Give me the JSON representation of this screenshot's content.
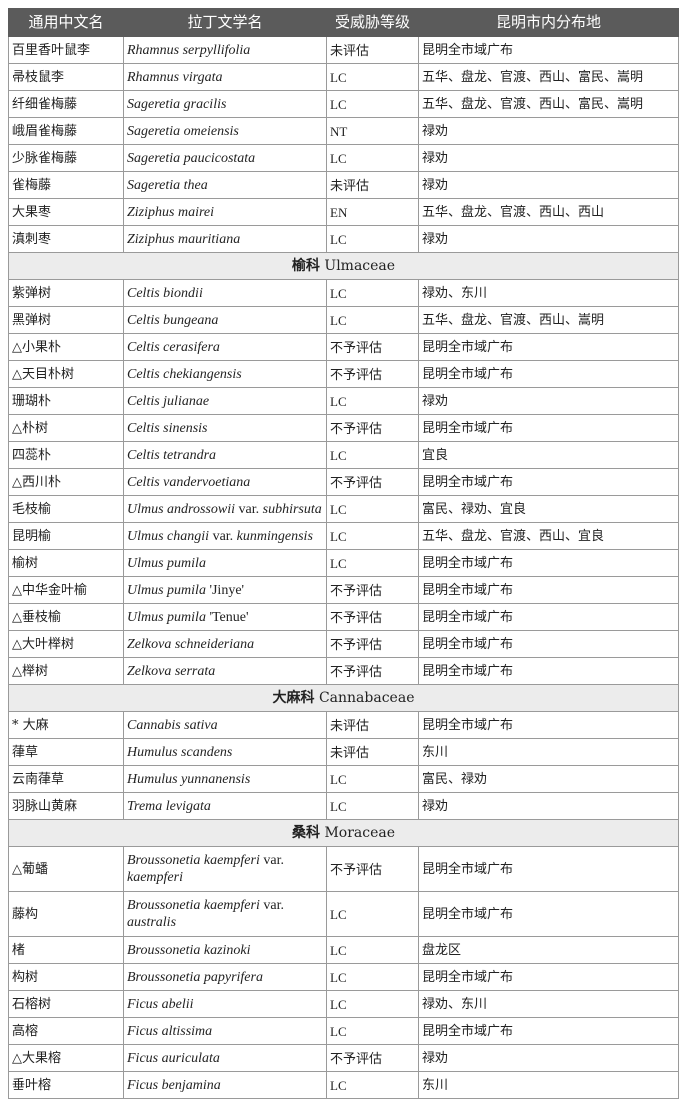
{
  "header": [
    "通用中文名",
    "拉丁文学名",
    "受威胁等级",
    "昆明市内分布地"
  ],
  "rows": [
    {
      "cn": "百里香叶鼠李",
      "lat": [
        [
          "Rhamnus serpyllifolia",
          1
        ]
      ],
      "status": "未评估",
      "dist": "昆明全市域广布"
    },
    {
      "cn": "帚枝鼠李",
      "lat": [
        [
          "Rhamnus virgata",
          1
        ]
      ],
      "status": "LC",
      "dist": "五华、盘龙、官渡、西山、富民、嵩明"
    },
    {
      "cn": "纤细雀梅藤",
      "lat": [
        [
          "Sageretia gracilis",
          1
        ]
      ],
      "status": "LC",
      "dist": "五华、盘龙、官渡、西山、富民、嵩明"
    },
    {
      "cn": "峨眉雀梅藤",
      "lat": [
        [
          "Sageretia omeiensis",
          1
        ]
      ],
      "status": "NT",
      "dist": "禄劝"
    },
    {
      "cn": "少脉雀梅藤",
      "lat": [
        [
          "Sageretia paucicostata",
          1
        ]
      ],
      "status": "LC",
      "dist": "禄劝"
    },
    {
      "cn": "雀梅藤",
      "lat": [
        [
          "Sageretia thea",
          1
        ]
      ],
      "status": "未评估",
      "dist": "禄劝"
    },
    {
      "cn": "大果枣",
      "lat": [
        [
          "Ziziphus mairei",
          1
        ]
      ],
      "status": "EN",
      "dist": "五华、盘龙、官渡、西山、西山"
    },
    {
      "cn": "滇刺枣",
      "lat": [
        [
          "Ziziphus mauritiana",
          1
        ]
      ],
      "status": "LC",
      "dist": "禄劝"
    },
    {
      "family_cn": "榆科",
      "family_lat": "Ulmaceae"
    },
    {
      "cn": "紫弹树",
      "lat": [
        [
          "Celtis biondii",
          1
        ]
      ],
      "status": "LC",
      "dist": "禄劝、东川"
    },
    {
      "cn": "黑弹树",
      "lat": [
        [
          "Celtis bungeana",
          1
        ]
      ],
      "status": "LC",
      "dist": "五华、盘龙、官渡、西山、嵩明"
    },
    {
      "cn": "△小果朴",
      "lat": [
        [
          "Celtis cerasifera",
          1
        ]
      ],
      "status": "不予评估",
      "dist": "昆明全市域广布"
    },
    {
      "cn": "△天目朴树",
      "lat": [
        [
          "Celtis chekiangensis",
          1
        ]
      ],
      "status": "不予评估",
      "dist": "昆明全市域广布"
    },
    {
      "cn": "珊瑚朴",
      "lat": [
        [
          "Celtis julianae",
          1
        ]
      ],
      "status": "LC",
      "dist": "禄劝"
    },
    {
      "cn": "△朴树",
      "lat": [
        [
          "Celtis sinensis",
          1
        ]
      ],
      "status": "不予评估",
      "dist": "昆明全市域广布"
    },
    {
      "cn": "四蕊朴",
      "lat": [
        [
          "Celtis tetrandra",
          1
        ]
      ],
      "status": "LC",
      "dist": "宜良"
    },
    {
      "cn": "△西川朴",
      "lat": [
        [
          "Celtis vandervoetiana",
          1
        ]
      ],
      "status": "不予评估",
      "dist": "昆明全市域广布"
    },
    {
      "cn": "毛枝榆",
      "lat": [
        [
          "Ulmus androssowii",
          1
        ],
        [
          " var. ",
          0
        ],
        [
          "subhirsuta",
          1
        ]
      ],
      "status": "LC",
      "dist": "富民、禄劝、宜良"
    },
    {
      "cn": "昆明榆",
      "lat": [
        [
          "Ulmus changii",
          1
        ],
        [
          " var. ",
          0
        ],
        [
          "kunmingensis",
          1
        ]
      ],
      "status": "LC",
      "dist": "五华、盘龙、官渡、西山、宜良"
    },
    {
      "cn": "榆树",
      "lat": [
        [
          "Ulmus pumila",
          1
        ]
      ],
      "status": "LC",
      "dist": "昆明全市域广布"
    },
    {
      "cn": "△中华金叶榆",
      "lat": [
        [
          "Ulmus pumila",
          1
        ],
        [
          " 'Jinye'",
          0
        ]
      ],
      "status": "不予评估",
      "dist": "昆明全市域广布"
    },
    {
      "cn": "△垂枝榆",
      "lat": [
        [
          "Ulmus pumila",
          1
        ],
        [
          " 'Tenue'",
          0
        ]
      ],
      "status": "不予评估",
      "dist": "昆明全市域广布"
    },
    {
      "cn": "△大叶榉树",
      "lat": [
        [
          "Zelkova schneideriana",
          1
        ]
      ],
      "status": "不予评估",
      "dist": "昆明全市域广布"
    },
    {
      "cn": "△榉树",
      "lat": [
        [
          "Zelkova serrata",
          1
        ]
      ],
      "status": "不予评估",
      "dist": "昆明全市域广布"
    },
    {
      "family_cn": "大麻科",
      "family_lat": "Cannabaceae"
    },
    {
      "cn": "* 大麻",
      "lat": [
        [
          "Cannabis sativa",
          1
        ]
      ],
      "status": "未评估",
      "dist": "昆明全市域广布"
    },
    {
      "cn": "葎草",
      "lat": [
        [
          "Humulus scandens",
          1
        ]
      ],
      "status": "未评估",
      "dist": "东川"
    },
    {
      "cn": "云南葎草",
      "lat": [
        [
          "Humulus yunnanensis",
          1
        ]
      ],
      "status": "LC",
      "dist": "富民、禄劝"
    },
    {
      "cn": "羽脉山黄麻",
      "lat": [
        [
          "Trema levigata",
          1
        ]
      ],
      "status": "LC",
      "dist": "禄劝"
    },
    {
      "family_cn": "桑科",
      "family_lat": "Moraceae"
    },
    {
      "cn": "△葡蟠",
      "lat": [
        [
          "Broussonetia kaempferi",
          1
        ],
        [
          " var. ",
          0
        ],
        [
          "kaempferi",
          1
        ]
      ],
      "status": "不予评估",
      "dist": "昆明全市域广布",
      "wrap": true
    },
    {
      "cn": "藤构",
      "lat": [
        [
          "Broussonetia kaempferi",
          1
        ],
        [
          " var. ",
          0
        ],
        [
          "australis",
          1
        ]
      ],
      "status": "LC",
      "dist": "昆明全市域广布",
      "wrap": true
    },
    {
      "cn": "楮",
      "lat": [
        [
          "Broussonetia kazinoki",
          1
        ]
      ],
      "status": "LC",
      "dist": "盘龙区"
    },
    {
      "cn": "构树",
      "lat": [
        [
          "Broussonetia papyrifera",
          1
        ]
      ],
      "status": "LC",
      "dist": "昆明全市域广布"
    },
    {
      "cn": "石榕树",
      "lat": [
        [
          "Ficus abelii",
          1
        ]
      ],
      "status": "LC",
      "dist": "禄劝、东川"
    },
    {
      "cn": "高榕",
      "lat": [
        [
          "Ficus altissima",
          1
        ]
      ],
      "status": "LC",
      "dist": "昆明全市域广布"
    },
    {
      "cn": "△大果榕",
      "lat": [
        [
          "Ficus auriculata",
          1
        ]
      ],
      "status": "不予评估",
      "dist": "禄劝"
    },
    {
      "cn": "垂叶榕",
      "lat": [
        [
          "Ficus benjamina",
          1
        ]
      ],
      "status": "LC",
      "dist": "东川"
    }
  ]
}
